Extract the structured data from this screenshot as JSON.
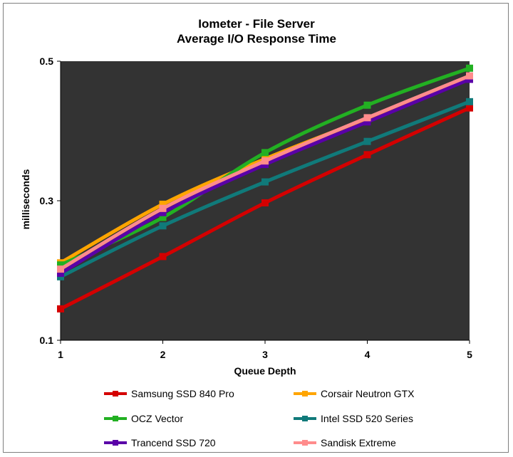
{
  "chart_data": {
    "type": "line",
    "title": "Iometer - File Server",
    "subtitle": "Average I/O Response Time",
    "xlabel": "Queue Depth",
    "ylabel": "milliseconds",
    "x": [
      1,
      2,
      3,
      4,
      5
    ],
    "xlim": [
      1,
      5
    ],
    "ylim": [
      0.1,
      0.5
    ],
    "yticks": [
      "0.1",
      "0.3",
      "0.5"
    ],
    "grid": false,
    "plot_background": "#333333",
    "legend_position": "bottom",
    "series": [
      {
        "name": "Samsung SSD 840 Pro",
        "color": "#d40000",
        "values": [
          0.145,
          0.22,
          0.297,
          0.366,
          0.433
        ]
      },
      {
        "name": "Corsair Neutron GTX",
        "color": "#ffa500",
        "values": [
          0.211,
          0.295,
          0.36,
          0.418,
          0.478
        ]
      },
      {
        "name": "OCZ Vector",
        "color": "#22b022",
        "values": [
          0.208,
          0.276,
          0.369,
          0.437,
          0.49
        ]
      },
      {
        "name": "Intel SSD 520 Series",
        "color": "#107a7a",
        "values": [
          0.191,
          0.264,
          0.327,
          0.385,
          0.442
        ]
      },
      {
        "name": "Trancend SSD 720",
        "color": "#5a00a8",
        "values": [
          0.196,
          0.283,
          0.352,
          0.413,
          0.474
        ]
      },
      {
        "name": "Sandisk Extreme",
        "color": "#ff8c8c",
        "values": [
          0.202,
          0.289,
          0.357,
          0.419,
          0.479
        ]
      }
    ]
  }
}
